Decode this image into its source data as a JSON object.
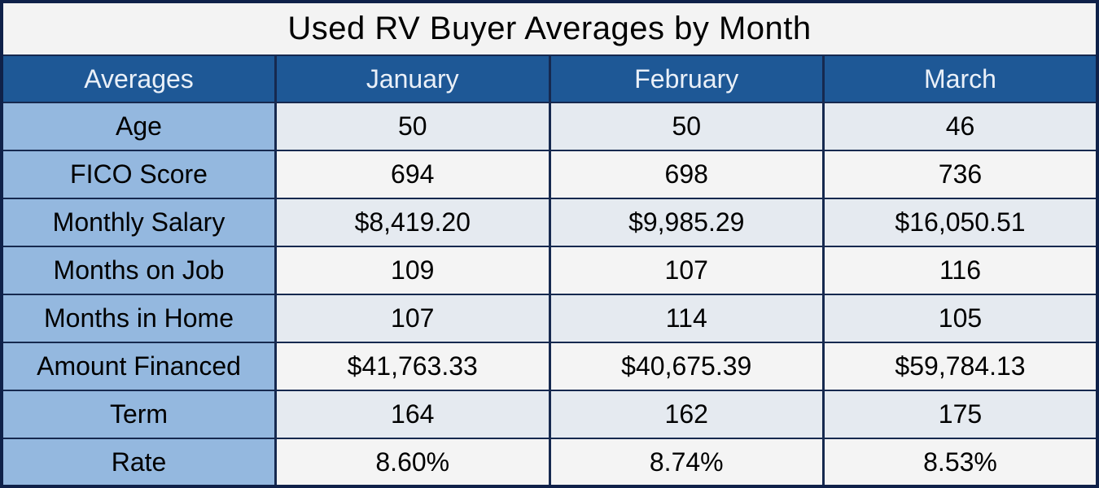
{
  "title": "Used RV Buyer Averages by Month",
  "colors": {
    "outer_border": "#0F2149",
    "gridline": "#16294F",
    "header_bg": "#1E5896",
    "header_text": "#EAF0F8",
    "label_column_bg": "#94B8DF",
    "row_band_blue": "#E5EAF0",
    "row_band_white": "#F4F4F4",
    "title_bg": "#F3F3F3",
    "text": "#000000"
  },
  "chart_data": {
    "type": "table",
    "title": "Used RV Buyer Averages by Month",
    "columns": [
      "Averages",
      "January",
      "February",
      "March"
    ],
    "rows": [
      {
        "label": "Age",
        "values": [
          "50",
          "50",
          "46"
        ]
      },
      {
        "label": "FICO Score",
        "values": [
          "694",
          "698",
          "736"
        ]
      },
      {
        "label": "Monthly Salary",
        "values": [
          "$8,419.20",
          "$9,985.29",
          "$16,050.51"
        ]
      },
      {
        "label": "Months on Job",
        "values": [
          "109",
          "107",
          "116"
        ]
      },
      {
        "label": "Months in Home",
        "values": [
          "107",
          "114",
          "105"
        ]
      },
      {
        "label": "Amount Financed",
        "values": [
          "$41,763.33",
          "$40,675.39",
          "$59,784.13"
        ]
      },
      {
        "label": "Term",
        "values": [
          "164",
          "162",
          "175"
        ]
      },
      {
        "label": "Rate",
        "values": [
          "8.60%",
          "8.74%",
          "8.53%"
        ]
      }
    ],
    "layout": {
      "legend": "none",
      "grid": "on",
      "column_count": 4,
      "row_count": 8
    }
  }
}
